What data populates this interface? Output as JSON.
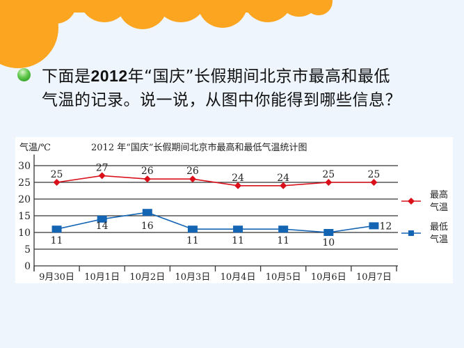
{
  "slide": {
    "question_line1_a": "下面是",
    "question_line1_year": "2012",
    "question_line1_b": "年“国庆”长假期间北京市最高和最低",
    "question_line2": "气温的记录。说一说，从图中你能得到哪些信息？",
    "bullet_icon": "green-circle-bullet",
    "colors": {
      "background": "#eef5fd",
      "cloud": "#fba521",
      "high_series": "#d9101a",
      "low_series": "#1464b4"
    }
  },
  "chart": {
    "y_unit_label": "气温/℃",
    "title": "2012 年“国庆”长假期间北京市最高和最低气温统计图",
    "y_ticks": [
      "30",
      "25",
      "20",
      "15",
      "10",
      "5",
      "0"
    ],
    "x_labels": [
      "9月30日",
      "10月1日",
      "10月2日",
      "10月3日",
      "10月4日",
      "10月5日",
      "10月6日",
      "10月7日"
    ],
    "legend": {
      "high_line1": "最高",
      "high_line2": "气温",
      "low_line1": "最低",
      "low_line2": "气温"
    },
    "high_values": [
      "25",
      "27",
      "26",
      "26",
      "24",
      "24",
      "25",
      "25"
    ],
    "low_values": [
      "11",
      "14",
      "16",
      "11",
      "11",
      "11",
      "10",
      "12"
    ]
  },
  "chart_data": {
    "type": "line",
    "title": "2012 年“国庆”长假期间北京市最高和最低气温统计图",
    "xlabel": "",
    "ylabel": "气温/℃",
    "ylim": [
      0,
      30
    ],
    "yticks": [
      0,
      5,
      10,
      15,
      20,
      25,
      30
    ],
    "grid": true,
    "legend_position": "right",
    "categories": [
      "9月30日",
      "10月1日",
      "10月2日",
      "10月3日",
      "10月4日",
      "10月5日",
      "10月6日",
      "10月7日"
    ],
    "series": [
      {
        "name": "最高气温",
        "color": "#d9101a",
        "marker": "diamond",
        "values": [
          25,
          27,
          26,
          26,
          24,
          24,
          25,
          25
        ]
      },
      {
        "name": "最低气温",
        "color": "#1464b4",
        "marker": "square",
        "values": [
          11,
          14,
          16,
          11,
          11,
          11,
          10,
          12
        ]
      }
    ]
  }
}
